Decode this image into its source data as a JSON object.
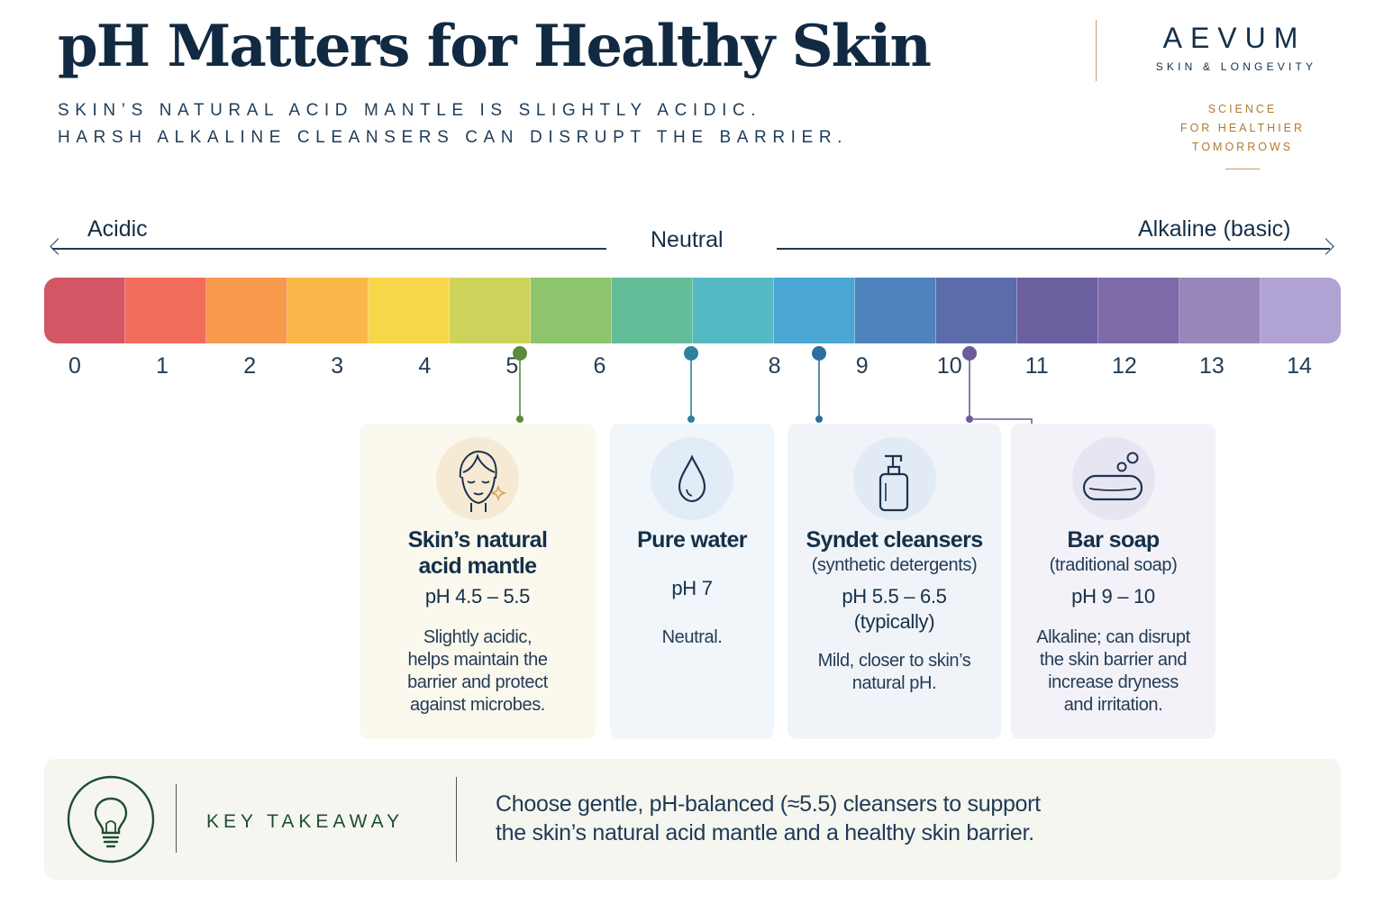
{
  "header": {
    "title": "pH Matters for Healthy Skin",
    "subtitle_line1": "SKIN’S NATURAL ACID MANTLE IS SLIGHTLY ACIDIC.",
    "subtitle_line2": "HARSH ALKALINE CLEANSERS CAN DISRUPT THE BARRIER."
  },
  "brand": {
    "name": "AEVUM",
    "tagline": "SKIN & LONGEVITY",
    "science_line1": "SCIENCE",
    "science_line2": "FOR HEALTHIER",
    "science_line3": "TOMORROWS"
  },
  "scale": {
    "acidic_label": "Acidic",
    "neutral_label": "Neutral",
    "alkaline_label": "Alkaline (basic)",
    "tick_labels": [
      "0",
      "1",
      "2",
      "3",
      "4",
      "5",
      "6",
      "8",
      "9",
      "10",
      "11",
      "12",
      "13",
      "14"
    ],
    "segment_colors": [
      "#d35665",
      "#f26d5b",
      "#f79a4c",
      "#f9b74a",
      "#f8d64a",
      "#cdd35a",
      "#8fc46f",
      "#63bd99",
      "#54b9c2",
      "#4aa6d3",
      "#4d82bc",
      "#5c6ba9",
      "#6b5f9f",
      "#7e6aa8",
      "#9787bb",
      "#b0a3d3"
    ]
  },
  "markers": [
    {
      "ph": 5.25,
      "color": "#5e8a3a"
    },
    {
      "ph": 7.0,
      "color": "#2f7fa0"
    },
    {
      "ph": 8.5,
      "color": "#2e6e9c"
    },
    {
      "ph": 10.3,
      "color": "#6a5c9a"
    }
  ],
  "cards": {
    "skin": {
      "icon": "face-icon",
      "title_line1": "Skin’s natural",
      "title_line2": "acid mantle",
      "ph": "pH 4.5 – 5.5",
      "desc_lines": [
        "Slightly acidic,",
        "helps maintain the",
        "barrier and protect",
        "against microbes."
      ]
    },
    "water": {
      "icon": "water-drop-icon",
      "title": "Pure water",
      "ph": "pH 7",
      "desc": "Neutral."
    },
    "syndet": {
      "icon": "pump-bottle-icon",
      "title": "Syndet cleansers",
      "subtitle": "(synthetic detergents)",
      "ph_line1": "pH 5.5 – 6.5",
      "ph_line2": "(typically)",
      "desc_lines": [
        "Mild, closer to skin’s",
        "natural pH."
      ]
    },
    "soap": {
      "icon": "soap-bar-icon",
      "title": "Bar soap",
      "subtitle": "(traditional soap)",
      "ph": "pH 9 – 10",
      "desc_lines": [
        "Alkaline; can disrupt",
        "the skin barrier and",
        "increase dryness",
        "and irritation."
      ]
    }
  },
  "takeaway": {
    "icon": "lightbulb-icon",
    "label": "KEY TAKEAWAY",
    "text_line1": "Choose gentle, pH-balanced (≈5.5) cleansers to support",
    "text_line2": "the skin’s natural acid mantle and a healthy skin barrier."
  },
  "colors": {
    "navy": "#112a42",
    "gold": "#b07a2e",
    "green": "#1f4d33"
  }
}
